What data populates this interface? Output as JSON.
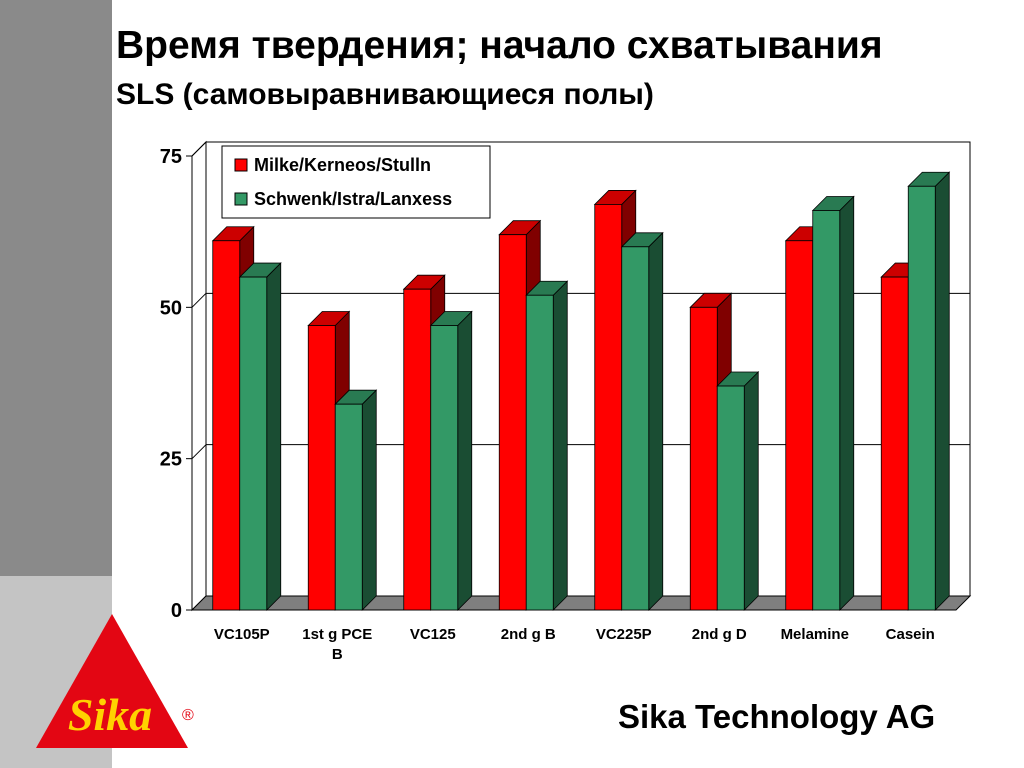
{
  "slide": {
    "title": "Время твердения; начало схватывания",
    "subtitle": "SLS (самовыравнивающиеся полы)",
    "company": "Sika Technology AG",
    "logo_text": "Sika",
    "registered_mark": "®"
  },
  "colors": {
    "accent_red": "#ff0000",
    "accent_green": "#339966",
    "sidebar_dark": "#8a8a8a",
    "sidebar_light": "#c4c4c4"
  },
  "chart_data": {
    "type": "bar",
    "style": "3d-clustered",
    "categories": [
      "VC105P",
      "1st g PCE B",
      "VC125",
      "2nd g B",
      "VC225P",
      "2nd g D",
      "Melamine",
      "Casein"
    ],
    "series": [
      {
        "name": "Milke/Kerneos/Stulln",
        "color": "#ff0000",
        "values": [
          61,
          47,
          53,
          62,
          67,
          50,
          61,
          55
        ]
      },
      {
        "name": "Schwenk/Istra/Lanxess",
        "color": "#339966",
        "values": [
          55,
          34,
          47,
          52,
          60,
          37,
          66,
          70
        ]
      }
    ],
    "ylim": [
      0,
      75
    ],
    "yticks": [
      "0",
      "25",
      "50",
      "75"
    ],
    "grid": true,
    "legend_position": "top-left",
    "xlabel": "",
    "ylabel": ""
  }
}
